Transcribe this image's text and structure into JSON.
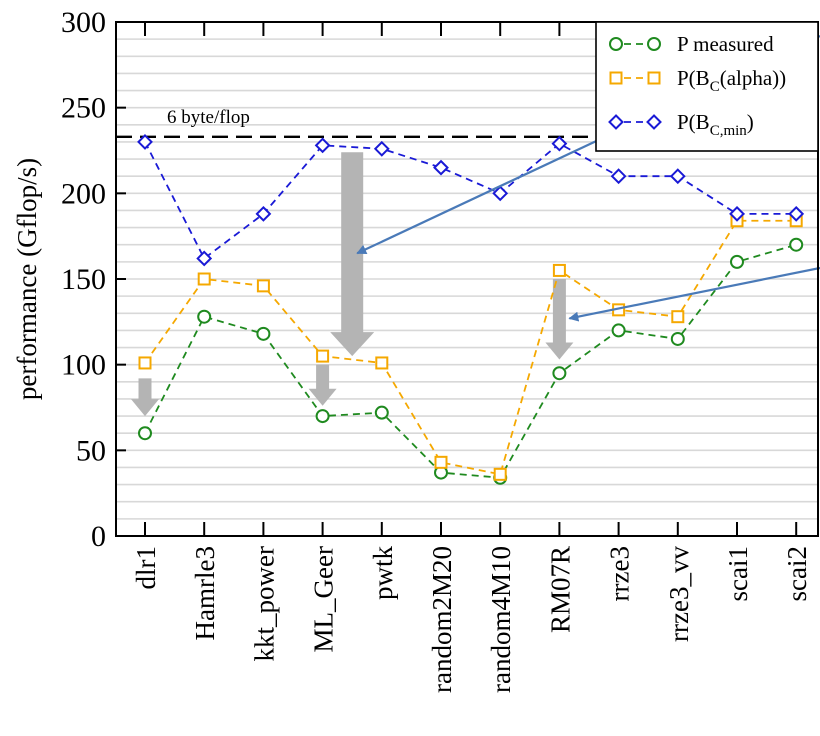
{
  "chart_data": {
    "type": "line",
    "title": "",
    "xlabel": "",
    "ylabel": "performance (Gflop/s)",
    "ylim": [
      0,
      300
    ],
    "yticks": [
      0,
      50,
      100,
      150,
      200,
      250,
      300
    ],
    "grid": "horizontal, every 10 Gflop/s",
    "legend_position": "top-right",
    "categories": [
      "dlr1",
      "Hamrle3",
      "kkt_power",
      "ML_Geer",
      "pwtk",
      "random2M20",
      "random4M10",
      "RM07R",
      "rrze3",
      "rrze3_vv",
      "scai1",
      "scai2"
    ],
    "series": [
      {
        "name": "P measured",
        "color": "#1f8a1f",
        "marker": "circle",
        "values": [
          60,
          128,
          118,
          70,
          72,
          37,
          34,
          95,
          120,
          115,
          160,
          170
        ]
      },
      {
        "name": "P(B_C(alpha))",
        "color": "#f5a800",
        "marker": "square",
        "values": [
          101,
          150,
          146,
          105,
          101,
          43,
          36,
          155,
          132,
          128,
          184,
          184
        ]
      },
      {
        "name": "P(B_C,min)",
        "color": "#1a1ad6",
        "marker": "diamond",
        "values": [
          230,
          162,
          188,
          228,
          226,
          215,
          200,
          229,
          210,
          210,
          188,
          188
        ]
      }
    ],
    "reference_line": {
      "label": "6 byte/flop",
      "value": 233,
      "style": "dashed",
      "color": "#000000"
    },
    "annotations": {
      "gray_arrows": [
        {
          "category": "dlr1",
          "from": 92,
          "to": 70
        },
        {
          "category": "ML_Geer",
          "from": 100,
          "to": 76
        },
        {
          "category": "pwtk",
          "from": 224,
          "to": 105,
          "between": [
            "ML_Geer",
            "pwtk"
          ]
        },
        {
          "category": "RM07R",
          "from": 150,
          "to": 103
        }
      ],
      "blue_arrows": [
        {
          "points_to": {
            "category_between": [
              "ML_Geer",
              "pwtk"
            ],
            "value": 165
          }
        },
        {
          "points_to": {
            "category": "RM07R",
            "value": 127
          }
        }
      ]
    }
  },
  "legend": {
    "items": [
      {
        "main": "P measured",
        "sub": "",
        "tail": ""
      },
      {
        "main": "P(B",
        "sub": "C",
        "tail": "(alpha))"
      },
      {
        "main": "P(B",
        "sub": "C,min",
        "tail": ")"
      }
    ]
  }
}
